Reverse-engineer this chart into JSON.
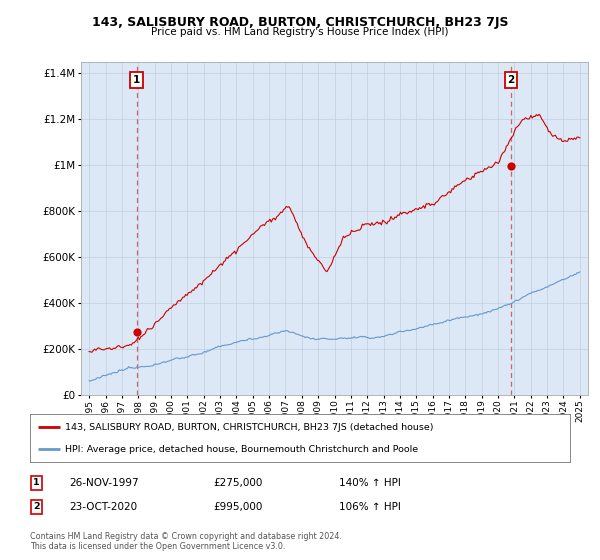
{
  "title": "143, SALISBURY ROAD, BURTON, CHRISTCHURCH, BH23 7JS",
  "subtitle": "Price paid vs. HM Land Registry's House Price Index (HPI)",
  "legend_line1": "143, SALISBURY ROAD, BURTON, CHRISTCHURCH, BH23 7JS (detached house)",
  "legend_line2": "HPI: Average price, detached house, Bournemouth Christchurch and Poole",
  "annotation1_date": "26-NOV-1997",
  "annotation1_price": "£275,000",
  "annotation1_hpi": "140% ↑ HPI",
  "annotation2_date": "23-OCT-2020",
  "annotation2_price": "£995,000",
  "annotation2_hpi": "106% ↑ HPI",
  "footer": "Contains HM Land Registry data © Crown copyright and database right 2024.\nThis data is licensed under the Open Government Licence v3.0.",
  "point1_x": 1997.9,
  "point1_y": 275000,
  "point2_x": 2020.8,
  "point2_y": 995000,
  "red_color": "#cc0000",
  "blue_color": "#6699cc",
  "dashed_color": "#cc6666",
  "chart_bg": "#dce8f5",
  "background_color": "#ffffff",
  "ylim": [
    0,
    1450000
  ],
  "xlim": [
    1994.5,
    2025.5
  ]
}
